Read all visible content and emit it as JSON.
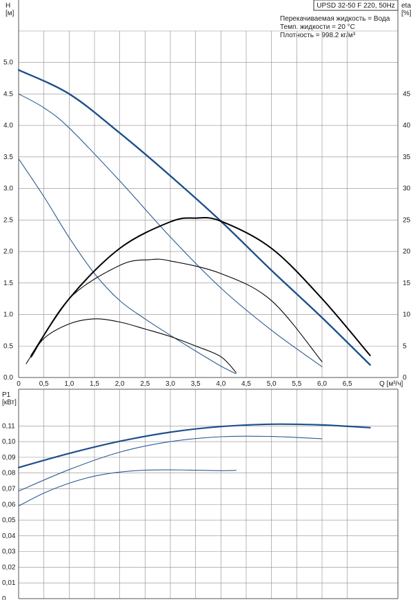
{
  "title": "UPSD 32-50 F 220, 50Hz",
  "legend_lines": [
    "Перекачиваемая жидкость = Вода",
    "Темп. жидкости = 20 °C",
    "Плотность = 998.2 кг/м³"
  ],
  "colors": {
    "blue": "#1f4e85",
    "blue_bold": "#1d4f8a",
    "black": "#000000"
  },
  "chart_data": [
    {
      "type": "line",
      "name": "performance",
      "xlabel": "Q [м³/ч]",
      "ylabel": "H\n[м]",
      "ylabel2": "eta\n[%]",
      "xlim": [
        0,
        7.5
      ],
      "ylim": [
        0,
        5.5
      ],
      "ylim2": [
        0,
        55
      ],
      "grid": true,
      "x_ticks": [
        "0",
        "0,5",
        "1,0",
        "1,5",
        "2,0",
        "2,5",
        "3,0",
        "3,5",
        "4,0",
        "4,5",
        "5,0",
        "5,5",
        "6,0",
        "6,5"
      ],
      "x_tick_values": [
        0,
        0.5,
        1,
        1.5,
        2,
        2.5,
        3,
        3.5,
        4,
        4.5,
        5,
        5.5,
        6,
        6.5
      ],
      "y_ticks": [
        "0.0",
        "0.5",
        "1.0",
        "1.5",
        "2.0",
        "2.5",
        "3.0",
        "3.5",
        "4.0",
        "4.5",
        "5.0"
      ],
      "y_tick_values": [
        0,
        0.5,
        1,
        1.5,
        2,
        2.5,
        3,
        3.5,
        4,
        4.5,
        5
      ],
      "y2_ticks": [
        "0",
        "5",
        "10",
        "15",
        "20",
        "25",
        "30",
        "35",
        "40",
        "45"
      ],
      "y2_tick_values": [
        0,
        5,
        10,
        15,
        20,
        25,
        30,
        35,
        40,
        45
      ],
      "series": [
        {
          "axis": "left",
          "color": "#1d4f8a",
          "width": 2.4,
          "x": [
            0,
            1,
            2,
            3,
            4,
            5,
            6,
            6.95
          ],
          "y": [
            4.88,
            4.5,
            3.88,
            3.2,
            2.48,
            1.7,
            0.95,
            0.2
          ]
        },
        {
          "axis": "left",
          "color": "#2a5a90",
          "width": 1.1,
          "x": [
            0,
            0.5,
            1,
            2,
            3,
            4,
            5,
            6
          ],
          "y": [
            4.5,
            4.28,
            3.96,
            3.12,
            2.23,
            1.42,
            0.75,
            0.17
          ]
        },
        {
          "axis": "left",
          "color": "#2a5a90",
          "width": 1.1,
          "x": [
            0,
            0.5,
            1,
            1.5,
            2,
            2.5,
            3,
            3.5,
            4,
            4.3
          ],
          "y": [
            3.47,
            2.87,
            2.22,
            1.65,
            1.22,
            0.93,
            0.67,
            0.42,
            0.18,
            0.06
          ]
        },
        {
          "axis": "right",
          "color": "#000000",
          "width": 2.0,
          "x": [
            0.25,
            1,
            2,
            3,
            3.5,
            4,
            5,
            6,
            6.95
          ],
          "y": [
            3.5,
            12.5,
            20.5,
            24.7,
            25.3,
            24.8,
            20.5,
            12.5,
            3.5
          ]
        },
        {
          "axis": "right",
          "color": "#000000",
          "width": 1.1,
          "x": [
            0.25,
            1,
            2,
            2.6,
            3,
            4,
            5,
            6
          ],
          "y": [
            3.2,
            12.5,
            17.8,
            18.7,
            18.5,
            16.5,
            12.2,
            2.5
          ]
        },
        {
          "axis": "right",
          "color": "#000000",
          "width": 1.1,
          "x": [
            0.15,
            0.5,
            1,
            1.5,
            2,
            2.5,
            3,
            3.5,
            4,
            4.3
          ],
          "y": [
            2.2,
            6.2,
            8.5,
            9.3,
            8.8,
            7.7,
            6.5,
            5.0,
            3.3,
            0.8
          ]
        }
      ]
    },
    {
      "type": "line",
      "name": "power",
      "ylabel": "P1\n[кВт]",
      "xlim": [
        0,
        7.5
      ],
      "ylim": [
        0,
        0.12
      ],
      "grid": true,
      "y_ticks": [
        "0",
        "0,01",
        "0,02",
        "0,03",
        "0,04",
        "0,05",
        "0,06",
        "0,07",
        "0,08",
        "0,09",
        "0,10",
        "0,11"
      ],
      "y_tick_values": [
        0,
        0.01,
        0.02,
        0.03,
        0.04,
        0.05,
        0.06,
        0.07,
        0.08,
        0.09,
        0.1,
        0.11
      ],
      "series": [
        {
          "color": "#1d4f8a",
          "width": 2.2,
          "x": [
            0,
            1,
            2,
            3,
            4,
            5,
            6,
            6.95
          ],
          "y": [
            0.0835,
            0.0925,
            0.1002,
            0.106,
            0.1096,
            0.1111,
            0.1106,
            0.1089
          ]
        },
        {
          "color": "#2a5a90",
          "width": 1.1,
          "x": [
            0,
            1,
            2,
            3,
            4,
            5,
            6
          ],
          "y": [
            0.0685,
            0.0822,
            0.0933,
            0.1,
            0.1031,
            0.1033,
            0.1018
          ]
        },
        {
          "color": "#2a5a90",
          "width": 1.1,
          "x": [
            0,
            0.5,
            1,
            1.5,
            2,
            2.5,
            3,
            3.5,
            4,
            4.3
          ],
          "y": [
            0.059,
            0.0672,
            0.0735,
            0.078,
            0.0806,
            0.0818,
            0.082,
            0.0818,
            0.0815,
            0.0817
          ]
        }
      ]
    }
  ]
}
